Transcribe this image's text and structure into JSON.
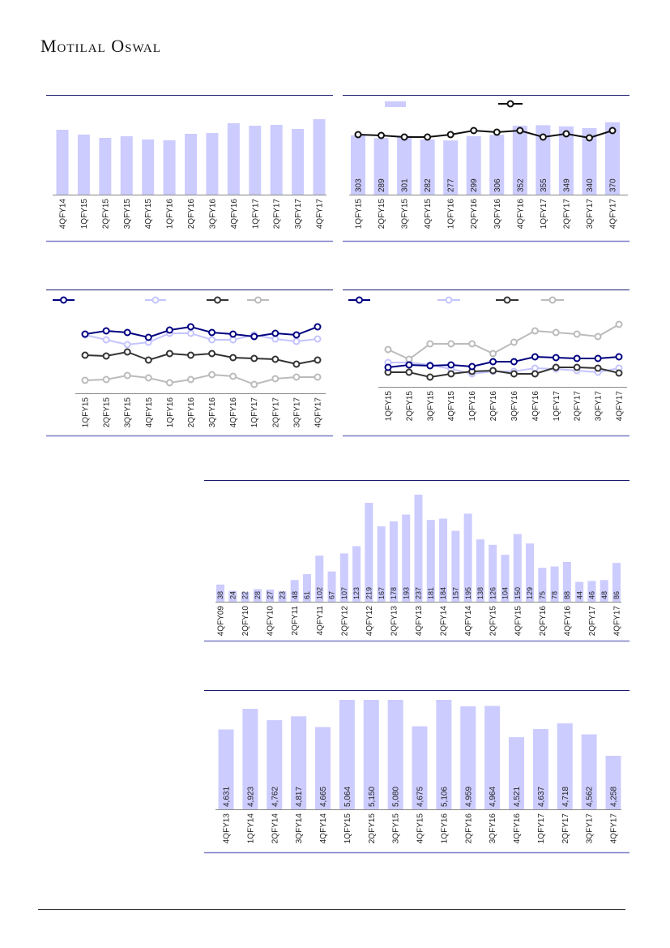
{
  "header": {
    "logo_text": "Motilal Oswal"
  },
  "colors": {
    "bar": "#ccccff",
    "navy": "#000080",
    "lavender": "#c4c4ff",
    "dark": "#333333",
    "gray": "#bbbbbb",
    "rule_top": "#1a1a6e",
    "rule_bottom": "#7b7bc8"
  },
  "chart_data": [
    {
      "id": "c1",
      "type": "bar",
      "title": "",
      "xlabel": "",
      "ylabel": "",
      "categories": [
        "4QFY14",
        "1QFY15",
        "2QFY15",
        "3QFY15",
        "4QFY15",
        "1QFY16",
        "2QFY16",
        "3QFY16",
        "4QFY16",
        "1QFY17",
        "2QFY17",
        "3QFY17",
        "4QFY17"
      ],
      "values": [
        80,
        74,
        70,
        72,
        68,
        67,
        75,
        76,
        88,
        85,
        86,
        81,
        93
      ],
      "ylim": [
        0,
        100
      ],
      "units": "relative (unlabeled)"
    },
    {
      "id": "c2",
      "type": "bar+line",
      "title": "",
      "categories": [
        "1QFY15",
        "2QFY15",
        "3QFY15",
        "4QFY15",
        "1QFY16",
        "2QFY16",
        "3QFY16",
        "4QFY16",
        "1QFY17",
        "2QFY17",
        "3QFY17",
        "4QFY17"
      ],
      "series": [
        {
          "name": "",
          "kind": "bar",
          "values": [
            303,
            289,
            301,
            282,
            277,
            299,
            306,
            352,
            355,
            349,
            340,
            370
          ],
          "ylim": [
            0,
            460
          ],
          "data_labels": [
            "303",
            "289",
            "301",
            "282",
            "277",
            "299",
            "306",
            "352",
            "355",
            "349",
            "340",
            "370"
          ]
        },
        {
          "name": "",
          "kind": "line",
          "values": [
            74,
            73,
            71,
            71,
            74,
            79,
            77,
            79,
            71,
            75,
            70,
            79
          ],
          "ylim": [
            0,
            100
          ],
          "units": "relative (unlabeled)"
        }
      ]
    },
    {
      "id": "c3",
      "type": "line",
      "title": "",
      "categories": [
        "1QFY15",
        "2QFY15",
        "3QFY15",
        "4QFY15",
        "1QFY16",
        "2QFY16",
        "3QFY16",
        "4QFY16",
        "1QFY17",
        "2QFY17",
        "3QFY17",
        "4QFY17"
      ],
      "ylim": [
        0,
        100
      ],
      "units": "relative (unlabeled)",
      "series": [
        {
          "name": "",
          "color": "navy",
          "values": [
            73,
            77,
            75,
            69,
            78,
            82,
            75,
            73,
            70,
            74,
            72,
            82
          ]
        },
        {
          "name": "",
          "color": "lavender",
          "values": [
            72,
            66,
            60,
            63,
            74,
            74,
            66,
            66,
            72,
            67,
            64,
            67
          ]
        },
        {
          "name": "",
          "color": "dark",
          "values": [
            47,
            46,
            51,
            41,
            49,
            47,
            49,
            44,
            43,
            42,
            36,
            41
          ]
        },
        {
          "name": "",
          "color": "gray",
          "values": [
            16,
            17,
            22,
            19,
            13,
            17,
            23,
            21,
            11,
            18,
            20,
            20
          ]
        }
      ]
    },
    {
      "id": "c4",
      "type": "line",
      "title": "",
      "categories": [
        "1QFY15",
        "2QFY15",
        "3QFY15",
        "4QFY15",
        "1QFY16",
        "2QFY16",
        "3QFY16",
        "4QFY16",
        "1QFY17",
        "2QFY17",
        "3QFY17",
        "4QFY17"
      ],
      "ylim": [
        0,
        100
      ],
      "units": "relative (unlabeled)",
      "series": [
        {
          "name": "",
          "color": "navy",
          "values": [
            24,
            27,
            26,
            27,
            25,
            31,
            31,
            37,
            36,
            35,
            35,
            37
          ]
        },
        {
          "name": "",
          "color": "lavender",
          "values": [
            30,
            30,
            27,
            22,
            16,
            19,
            19,
            23,
            22,
            20,
            18,
            23
          ]
        },
        {
          "name": "",
          "color": "dark",
          "values": [
            18,
            18,
            12,
            16,
            19,
            20,
            16,
            16,
            24,
            24,
            23,
            17
          ]
        },
        {
          "name": "",
          "color": "gray",
          "values": [
            46,
            34,
            53,
            53,
            53,
            41,
            55,
            69,
            67,
            65,
            62,
            77
          ]
        }
      ]
    },
    {
      "id": "c5",
      "type": "bar",
      "title": "",
      "tick_every": 2,
      "tick_labels": [
        "4QFY09",
        "2QFY10",
        "4QFY10",
        "2QFY11",
        "4QFY11",
        "2QFY12",
        "4QFY12",
        "2QFY13",
        "4QFY13",
        "2QFY14",
        "4QFY14",
        "2QFY15",
        "4QFY15",
        "2QFY16",
        "4QFY16",
        "2QFY17",
        "4QFY17"
      ],
      "values": [
        38,
        24,
        22,
        28,
        27,
        23,
        48,
        61,
        102,
        67,
        107,
        123,
        219,
        167,
        178,
        193,
        237,
        181,
        184,
        157,
        195,
        138,
        126,
        104,
        150,
        129,
        75,
        78,
        88,
        44,
        46,
        48,
        86
      ],
      "data_labels": [
        "38",
        "24",
        "22",
        "28",
        "27",
        "23",
        "48",
        "61",
        "102",
        "67",
        "107",
        "123",
        "219",
        "167",
        "178",
        "193",
        "237",
        "181",
        "184",
        "157",
        "195",
        "138",
        "126",
        "104",
        "150",
        "129",
        "75",
        "78",
        "88",
        "44",
        "46",
        "48",
        "86"
      ],
      "ylim": [
        0,
        255
      ]
    },
    {
      "id": "c6",
      "type": "bar",
      "title": "",
      "categories": [
        "4QFY13",
        "1QFY14",
        "2QFY14",
        "3QFY14",
        "4QFY14",
        "1QFY15",
        "2QFY15",
        "3QFY15",
        "4QFY15",
        "1QFY16",
        "2QFY16",
        "3QFY16",
        "4QFY16",
        "1QFY17",
        "2QFY17",
        "3QFY17",
        "4QFY17"
      ],
      "values": [
        4631,
        4923,
        4762,
        4817,
        4665,
        5064,
        5150,
        5080,
        4675,
        5106,
        4959,
        4964,
        4521,
        4637,
        4718,
        4562,
        4258
      ],
      "data_labels": [
        "4,631",
        "4,923",
        "4,762",
        "4,817",
        "4,665",
        "5,064",
        "5,150",
        "5,080",
        "4,675",
        "5,106",
        "4,959",
        "4,964",
        "4,521",
        "4,637",
        "4,718",
        "4,562",
        "4,258"
      ],
      "ylim": [
        3500,
        5050
      ]
    }
  ]
}
